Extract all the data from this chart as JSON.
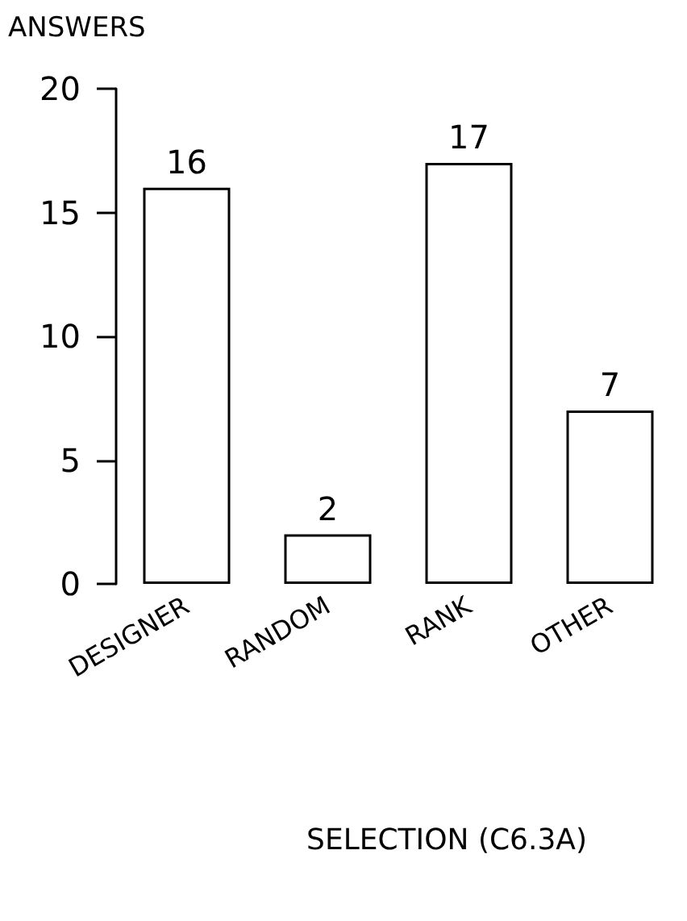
{
  "chart_data": {
    "type": "bar",
    "ylabel": "ANSWERS",
    "xlabel": "SELECTION (C6.3A)",
    "categories": [
      "DESIGNER",
      "RANDOM",
      "RANK",
      "OTHER"
    ],
    "values": [
      16,
      2,
      17,
      7
    ],
    "color": "#ffffff",
    "ylim": [
      0,
      20
    ],
    "yticks": [
      0,
      5,
      10,
      15,
      20
    ],
    "data_labels": true
  }
}
